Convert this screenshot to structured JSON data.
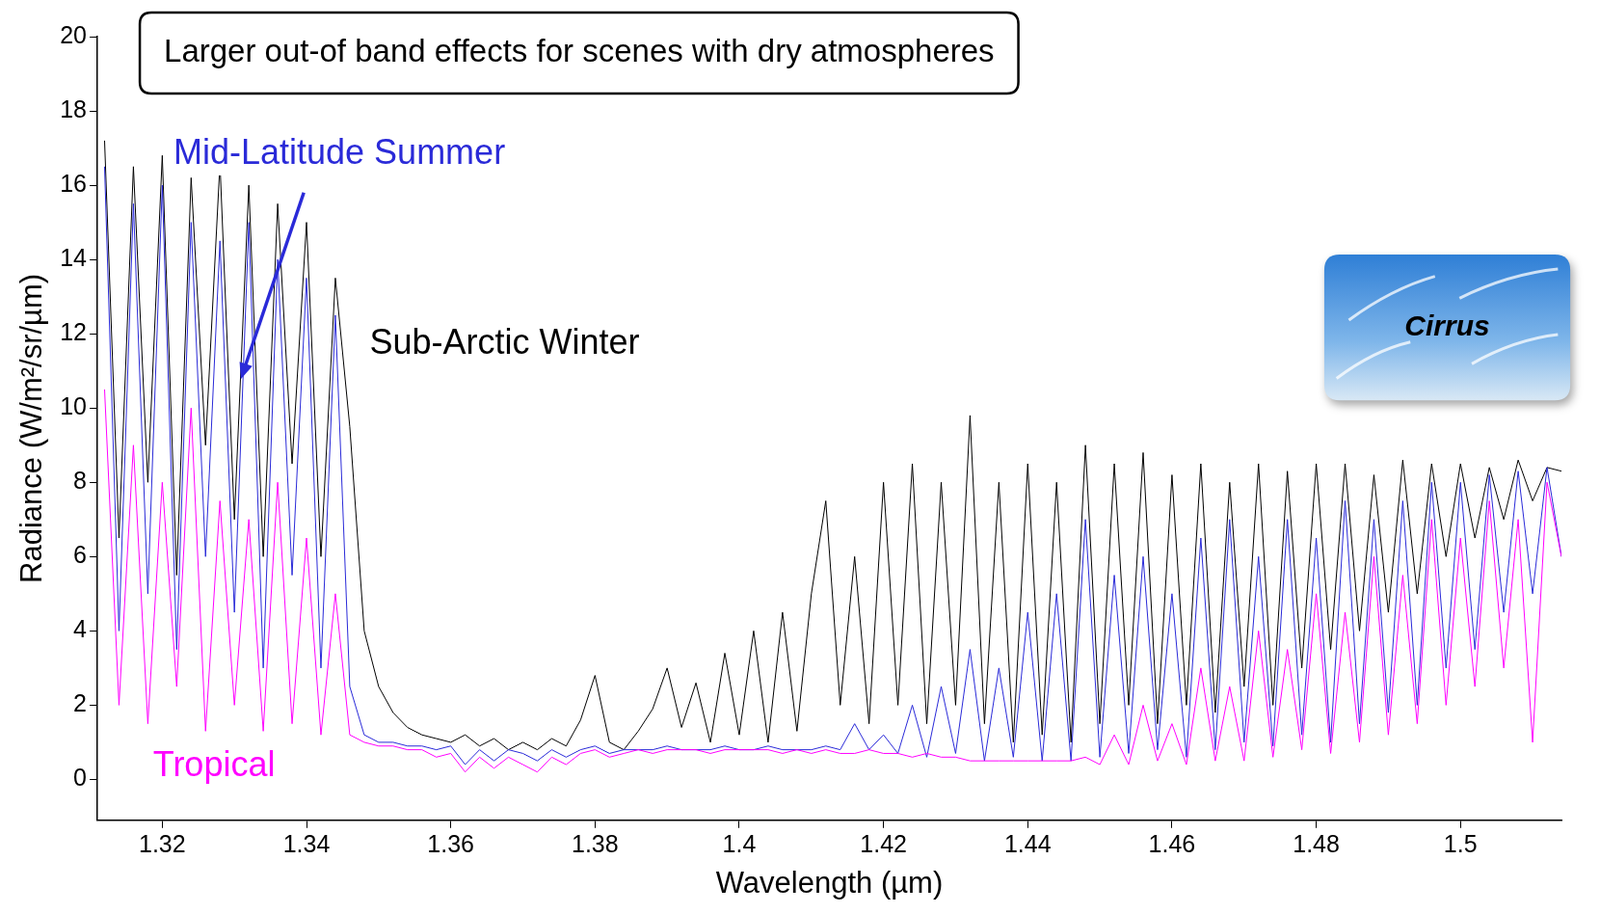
{
  "chart_data": {
    "type": "line",
    "title": "Larger out-of band effects for scenes with dry atmospheres",
    "x_label": "Wavelength (µm)",
    "y_label": "Radiance (W/m²/sr/µm)",
    "annotations": [
      "Cirrus"
    ],
    "x": [
      1.312,
      1.314,
      1.316,
      1.318,
      1.32,
      1.322,
      1.324,
      1.326,
      1.328,
      1.33,
      1.332,
      1.334,
      1.336,
      1.338,
      1.34,
      1.342,
      1.344,
      1.346,
      1.348,
      1.35,
      1.352,
      1.354,
      1.356,
      1.358,
      1.36,
      1.362,
      1.364,
      1.366,
      1.368,
      1.37,
      1.372,
      1.374,
      1.376,
      1.378,
      1.38,
      1.382,
      1.384,
      1.386,
      1.388,
      1.39,
      1.392,
      1.394,
      1.396,
      1.398,
      1.4,
      1.402,
      1.404,
      1.406,
      1.408,
      1.41,
      1.412,
      1.414,
      1.416,
      1.418,
      1.42,
      1.422,
      1.424,
      1.426,
      1.428,
      1.43,
      1.432,
      1.434,
      1.436,
      1.438,
      1.44,
      1.442,
      1.444,
      1.446,
      1.448,
      1.45,
      1.452,
      1.454,
      1.456,
      1.458,
      1.46,
      1.462,
      1.464,
      1.466,
      1.468,
      1.47,
      1.472,
      1.474,
      1.476,
      1.478,
      1.48,
      1.482,
      1.484,
      1.486,
      1.488,
      1.49,
      1.492,
      1.494,
      1.496,
      1.498,
      1.5,
      1.502,
      1.504,
      1.506,
      1.508,
      1.51,
      1.512,
      1.514
    ],
    "series": [
      {
        "name": "Sub-Arctic Winter",
        "color": "#000000",
        "values": [
          17.2,
          6.5,
          16.5,
          8,
          16.8,
          5.5,
          16.2,
          9,
          16.6,
          7,
          16,
          6,
          15.5,
          8.5,
          15,
          6,
          13.5,
          9.5,
          4,
          2.5,
          1.8,
          1.4,
          1.2,
          1.1,
          1.0,
          1.2,
          0.9,
          1.1,
          0.8,
          1.0,
          0.8,
          1.1,
          0.9,
          1.6,
          2.8,
          1.0,
          0.8,
          1.3,
          1.9,
          3.0,
          1.4,
          2.6,
          1.0,
          3.4,
          1.2,
          4.0,
          1.0,
          4.5,
          1.3,
          5.0,
          7.5,
          2.0,
          6.0,
          1.5,
          8.0,
          2.0,
          8.5,
          1.5,
          8.0,
          2.0,
          9.8,
          1.5,
          8.0,
          1.0,
          8.5,
          1.2,
          8.0,
          1.0,
          9.0,
          1.5,
          8.5,
          2.0,
          8.8,
          1.5,
          8.2,
          2.0,
          8.5,
          1.8,
          8.0,
          2.5,
          8.5,
          2.0,
          8.3,
          3.0,
          8.5,
          3.5,
          8.5,
          4.0,
          8.2,
          4.5,
          8.6,
          5.0,
          8.5,
          6.0,
          8.5,
          6.5,
          8.4,
          7.0,
          8.6,
          7.5,
          8.4,
          8.3
        ]
      },
      {
        "name": "Mid-Latitude Summer",
        "color": "#2a2ad8",
        "values": [
          16.5,
          4,
          15.5,
          5,
          16,
          3.5,
          15,
          6,
          14.5,
          4.5,
          15,
          3,
          14,
          5.5,
          13.5,
          3,
          12.5,
          2.5,
          1.2,
          1.0,
          1.0,
          0.9,
          0.9,
          0.8,
          0.9,
          0.4,
          0.8,
          0.5,
          0.8,
          0.7,
          0.5,
          0.8,
          0.6,
          0.8,
          0.9,
          0.7,
          0.8,
          0.8,
          0.8,
          0.9,
          0.8,
          0.8,
          0.8,
          0.9,
          0.8,
          0.8,
          0.9,
          0.8,
          0.8,
          0.8,
          0.9,
          0.8,
          1.5,
          0.8,
          1.2,
          0.7,
          2.0,
          0.6,
          2.5,
          0.7,
          3.5,
          0.5,
          3.0,
          0.6,
          4.5,
          0.5,
          5.0,
          0.5,
          7.0,
          0.6,
          5.5,
          0.7,
          6.0,
          0.8,
          5.0,
          0.6,
          6.5,
          0.8,
          7.0,
          1.0,
          6.0,
          0.9,
          7.0,
          1.2,
          6.5,
          1.0,
          7.5,
          1.5,
          7.0,
          1.8,
          7.5,
          2.0,
          8.0,
          3.0,
          8.0,
          3.5,
          8.2,
          4.5,
          8.3,
          5.0,
          8.4,
          6.0
        ]
      },
      {
        "name": "Tropical",
        "color": "#ff00ff",
        "values": [
          10.5,
          2,
          9,
          1.5,
          8,
          2.5,
          10,
          1.3,
          7.5,
          2,
          7,
          1.3,
          8,
          1.5,
          6.5,
          1.2,
          5,
          1.2,
          1.0,
          0.9,
          0.9,
          0.8,
          0.8,
          0.6,
          0.7,
          0.2,
          0.6,
          0.3,
          0.6,
          0.4,
          0.2,
          0.6,
          0.4,
          0.7,
          0.8,
          0.6,
          0.7,
          0.8,
          0.7,
          0.8,
          0.8,
          0.8,
          0.7,
          0.8,
          0.8,
          0.8,
          0.8,
          0.7,
          0.8,
          0.7,
          0.8,
          0.7,
          0.7,
          0.8,
          0.7,
          0.7,
          0.6,
          0.7,
          0.6,
          0.6,
          0.5,
          0.5,
          0.5,
          0.5,
          0.5,
          0.5,
          0.5,
          0.5,
          0.6,
          0.4,
          1.2,
          0.4,
          2.0,
          0.5,
          1.5,
          0.4,
          3.0,
          0.5,
          2.5,
          0.5,
          4.0,
          0.6,
          3.5,
          0.8,
          5.0,
          0.7,
          4.5,
          1.0,
          6.0,
          1.2,
          5.5,
          1.5,
          7.0,
          2.0,
          6.5,
          2.5,
          7.5,
          3.0,
          7.0,
          1.0,
          8.0,
          6.0
        ]
      }
    ],
    "xlim": [
      1.311,
      1.514
    ],
    "ylim": [
      -1.1,
      20
    ],
    "xticks": [
      1.32,
      1.34,
      1.36,
      1.38,
      1.4,
      1.42,
      1.44,
      1.46,
      1.48,
      1.5
    ],
    "yticks": [
      0,
      2,
      4,
      6,
      8,
      10,
      12,
      14,
      16,
      18,
      20
    ],
    "grid": false
  }
}
